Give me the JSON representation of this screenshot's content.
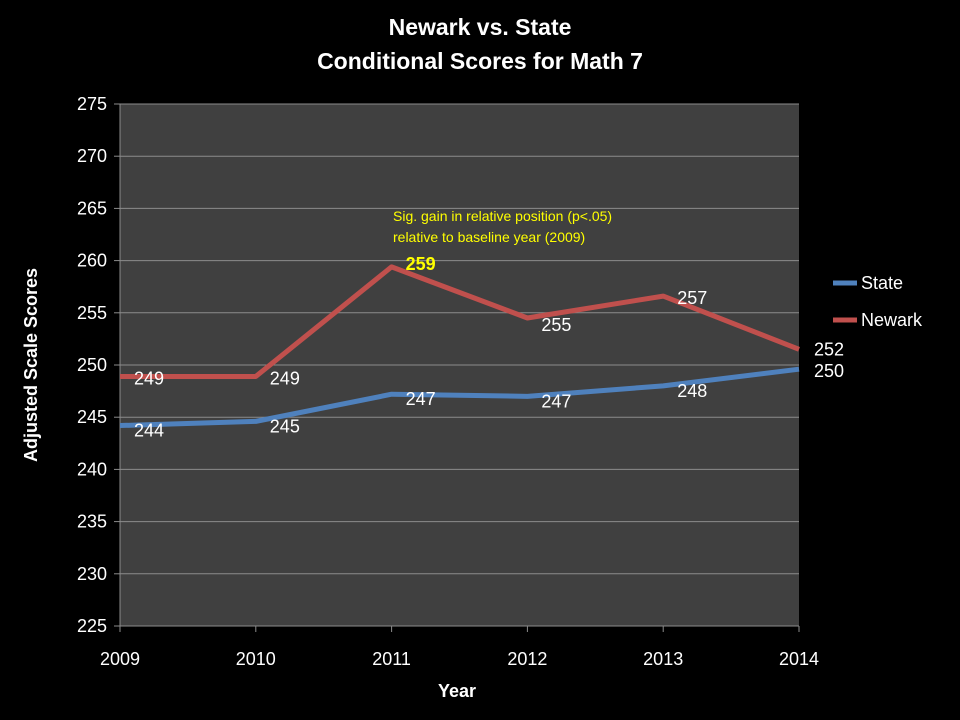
{
  "chart_data": {
    "type": "line",
    "title": [
      "Newark vs. State",
      "Conditional Scores for Math 7"
    ],
    "xlabel": "Year",
    "ylabel": "Adjusted Scale Scores",
    "x": [
      "2009",
      "2010",
      "2011",
      "2012",
      "2013",
      "2014"
    ],
    "ylim": [
      225,
      275
    ],
    "yticks": [
      225,
      230,
      235,
      240,
      245,
      250,
      255,
      260,
      265,
      270,
      275
    ],
    "grid": true,
    "legend_position": "right",
    "series": [
      {
        "name": "State",
        "color": "#4f81bd",
        "values": [
          244.2,
          244.6,
          247.2,
          247.0,
          248.0,
          249.6
        ],
        "labels": [
          "244",
          "245",
          "247",
          "247",
          "248",
          "250"
        ]
      },
      {
        "name": "Newark",
        "color": "#c0504d",
        "values": [
          248.9,
          248.9,
          259.4,
          254.5,
          256.6,
          251.5
        ],
        "labels": [
          "249",
          "249",
          "259",
          "255",
          "257",
          "252"
        ],
        "highlight_index": 2
      }
    ],
    "annotation": [
      "Sig. gain in relative position (p<.05)",
      "relative to baseline year (2009)"
    ],
    "plot_background": "#404040",
    "highlight_color": "#ffff00"
  }
}
